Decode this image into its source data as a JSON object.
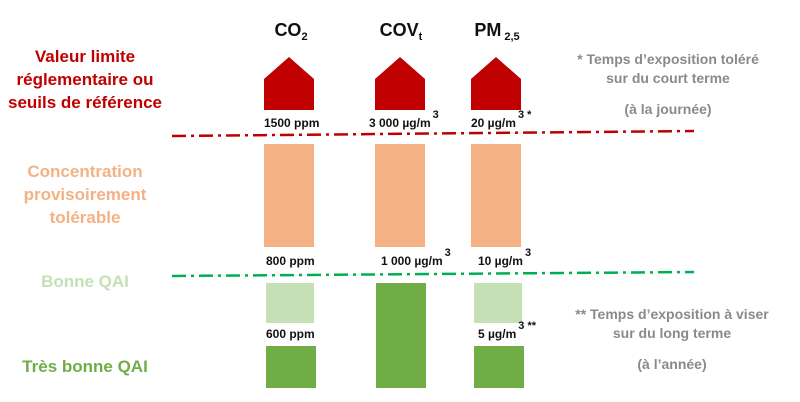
{
  "labels": {
    "limit": [
      "Valeur limite",
      "réglementaire ou",
      "seuils de référence"
    ],
    "provisional": [
      "Concentration",
      "provisoirement",
      "tolérable"
    ],
    "good": "Bonne QAI",
    "very_good": "Très bonne QAI"
  },
  "columns": [
    {
      "name": "CO",
      "sub": "2",
      "limit": "1500 ppm",
      "limit_sup": "",
      "provisional": "800 ppm",
      "provisional_sup": "",
      "good": "600 ppm",
      "good_sup": ""
    },
    {
      "name": "COV",
      "sub": "t",
      "limit": "3 000 µg/m",
      "limit_sup": "3",
      "provisional": "1 000 µg/m",
      "provisional_sup": "3",
      "good": "",
      "good_sup": ""
    },
    {
      "name": "PM",
      "sub": " 2,5",
      "limit": "20 µg/m",
      "limit_sup": "3 *",
      "provisional": "10 µg/m",
      "provisional_sup": "3",
      "good": "5 µg/m",
      "good_sup": "3 **"
    }
  ],
  "notes": {
    "short_term": [
      "* Temps d’exposition toléré",
      "sur du court terme",
      "(à la journée)"
    ],
    "long_term": [
      "** Temps d’exposition à viser",
      "sur du long terme",
      "(à l’année)"
    ]
  },
  "colors": {
    "limit": "#c00000",
    "provisional": "#f4b183",
    "good": "#c5e0b4",
    "very_good": "#70ad47",
    "good_line": "#00b050",
    "note": "#8a8a8a"
  }
}
